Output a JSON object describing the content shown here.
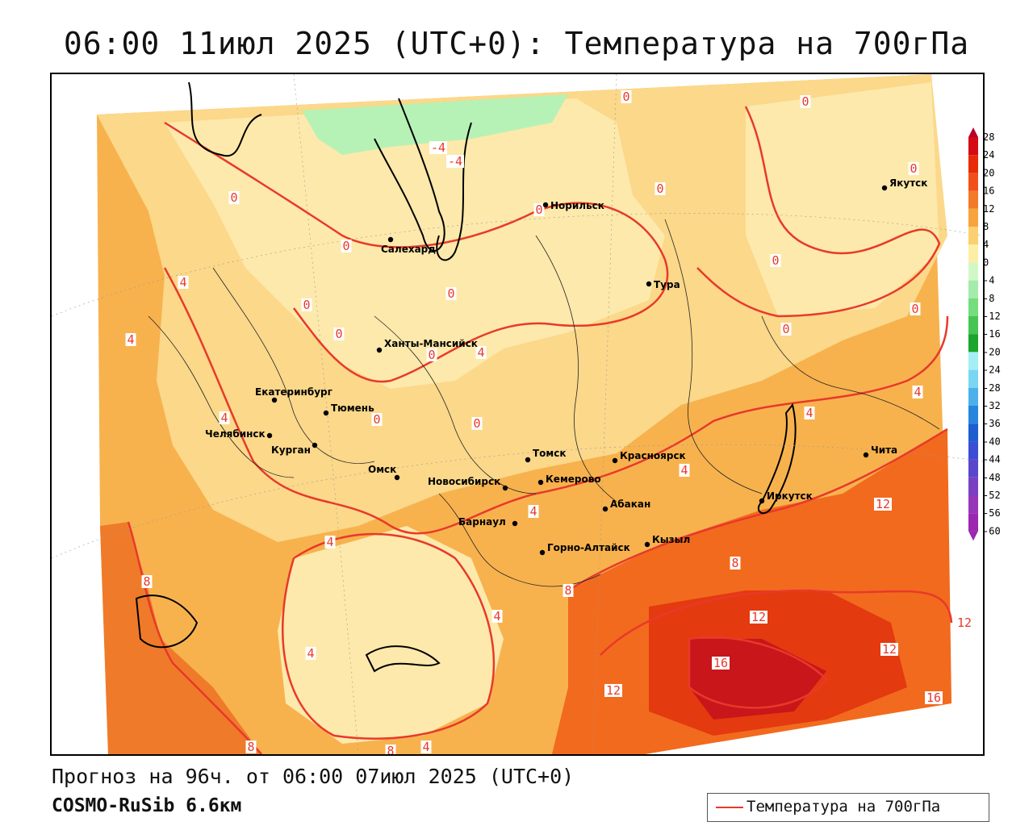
{
  "title": "06:00 11июл 2025 (UTC+0): Температура на 700гПа",
  "footer": {
    "forecast": "Прогноз на 96ч. от 06:00 07июл 2025 (UTC+0)",
    "model": "COSMO-RuSib 6.6км"
  },
  "legend": {
    "label": "Температура на 700гПа",
    "line_color": "#e8392a"
  },
  "colorbar": {
    "labels": [
      "28",
      "24",
      "20",
      "16",
      "12",
      "8",
      "4",
      "0",
      "-4",
      "-8",
      "-12",
      "-16",
      "-20",
      "-24",
      "-28",
      "-32",
      "-36",
      "-40",
      "-44",
      "-48",
      "-52",
      "-56",
      "-60"
    ],
    "colors": [
      "#b8002a",
      "#d40a14",
      "#e82a08",
      "#f2501a",
      "#f27a28",
      "#f7a43c",
      "#fbd070",
      "#fdeea6",
      "#d2f7c6",
      "#a4ecab",
      "#74dd7c",
      "#46c552",
      "#1aa52c",
      "#a6eef7",
      "#7ad6f2",
      "#4cb0ea",
      "#2686de",
      "#1c5ed0",
      "#3c4cd6",
      "#5a46cc",
      "#7a40c2",
      "#9636b8",
      "#9c27b0"
    ]
  },
  "cities": [
    {
      "name": "Норильск"
    },
    {
      "name": "Салехард"
    },
    {
      "name": "Тура"
    },
    {
      "name": "Якутск"
    },
    {
      "name": "Ханты-Мансийск"
    },
    {
      "name": "Екатеринбург"
    },
    {
      "name": "Тюмень"
    },
    {
      "name": "Челябинск"
    },
    {
      "name": "Курган"
    },
    {
      "name": "Омск"
    },
    {
      "name": "Новосибирск"
    },
    {
      "name": "Томск"
    },
    {
      "name": "Кемерово"
    },
    {
      "name": "Красноярск"
    },
    {
      "name": "Барнаул"
    },
    {
      "name": "Абакан"
    },
    {
      "name": "Горно-Алтайск"
    },
    {
      "name": "Кызыл"
    },
    {
      "name": "Иркутск"
    },
    {
      "name": "Чита"
    }
  ],
  "contour_labels": [
    "0",
    "0",
    "0",
    "0",
    "0",
    "0",
    "0",
    "0",
    "0",
    "0",
    "0",
    "0",
    "0",
    "0",
    "0",
    "0",
    "-4",
    "-4",
    "4",
    "4",
    "4",
    "4",
    "4",
    "4",
    "4",
    "4",
    "4",
    "4",
    "4",
    "4",
    "8",
    "8",
    "8",
    "8",
    "8",
    "12",
    "12",
    "12",
    "12",
    "12",
    "16",
    "16"
  ]
}
